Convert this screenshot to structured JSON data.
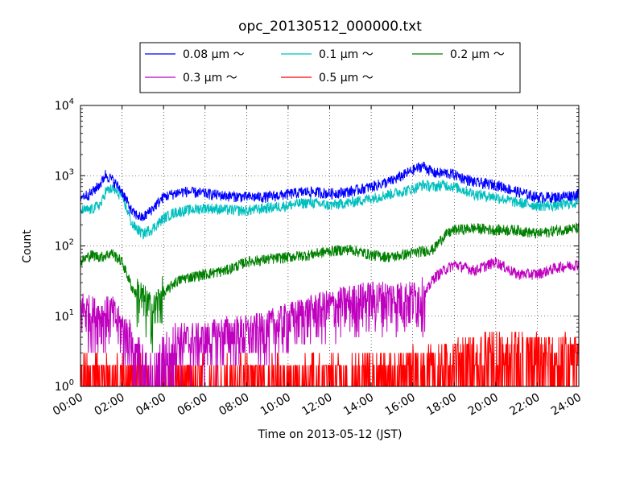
{
  "chart_data": {
    "type": "line",
    "title": "opc_20130512_000000.txt",
    "xlabel": "Time on 2013-05-12 (JST)",
    "ylabel": "Count",
    "x_unit": "hours",
    "xlim": [
      0,
      24
    ],
    "ylim": [
      1,
      10000
    ],
    "yscale": "log",
    "grid": true,
    "legend": {
      "placement": "top-center",
      "columns": 3
    },
    "xtick_labels": [
      "00:00",
      "02:00",
      "04:00",
      "06:00",
      "08:00",
      "10:00",
      "12:00",
      "14:00",
      "16:00",
      "18:00",
      "20:00",
      "22:00",
      "24:00"
    ],
    "ytick_labels": [
      {
        "base": "10",
        "exp": "0"
      },
      {
        "base": "10",
        "exp": "1"
      },
      {
        "base": "10",
        "exp": "2"
      },
      {
        "base": "10",
        "exp": "3"
      },
      {
        "base": "10",
        "exp": "4"
      }
    ],
    "series": [
      {
        "name": "0.08 μm ～",
        "color": "#0000ff",
        "x": [
          0,
          0.5,
          1,
          1.2,
          1.5,
          2,
          2.5,
          3,
          3.5,
          4,
          4.5,
          5,
          6,
          7,
          8,
          9,
          10,
          11,
          12,
          13,
          14,
          15,
          16,
          16.5,
          17,
          17.5,
          18,
          19,
          20,
          21,
          22,
          23,
          24
        ],
        "y": [
          500,
          560,
          800,
          1050,
          900,
          600,
          300,
          250,
          350,
          500,
          560,
          600,
          560,
          520,
          500,
          500,
          550,
          600,
          560,
          600,
          700,
          850,
          1200,
          1400,
          1100,
          1100,
          1050,
          800,
          750,
          600,
          500,
          500,
          550
        ]
      },
      {
        "name": "0.1 μm ～",
        "color": "#00bfbf",
        "x": [
          0,
          0.5,
          1,
          1.2,
          1.5,
          2,
          2.5,
          3,
          3.5,
          4,
          4.5,
          5,
          6,
          7,
          8,
          9,
          10,
          11,
          12,
          13,
          14,
          15,
          16,
          16.5,
          17,
          17.5,
          18,
          19,
          20,
          21,
          22,
          23,
          24
        ],
        "y": [
          320,
          330,
          400,
          600,
          650,
          520,
          200,
          150,
          180,
          250,
          300,
          320,
          350,
          330,
          320,
          350,
          380,
          420,
          380,
          420,
          480,
          560,
          650,
          750,
          700,
          750,
          700,
          550,
          500,
          420,
          380,
          380,
          420
        ]
      },
      {
        "name": "0.2 μm ～",
        "color": "#008000",
        "x": [
          0,
          0.5,
          1,
          1.5,
          2,
          2.5,
          3,
          3.5,
          4,
          4.5,
          5,
          6,
          7,
          8,
          9,
          10,
          11,
          12,
          13,
          14,
          15,
          16,
          16.5,
          17,
          17.5,
          18,
          19,
          20,
          21,
          22,
          23,
          24
        ],
        "y": [
          60,
          75,
          70,
          80,
          60,
          25,
          15,
          10,
          20,
          30,
          35,
          40,
          45,
          60,
          65,
          70,
          75,
          85,
          90,
          75,
          70,
          80,
          85,
          90,
          140,
          170,
          180,
          170,
          170,
          150,
          170,
          180
        ]
      },
      {
        "name": "0.3 μm ～",
        "color": "#bf00bf",
        "x": [
          0,
          0.5,
          1,
          1.5,
          2,
          2.5,
          3,
          3.5,
          4,
          4.5,
          5,
          6,
          7,
          8,
          9,
          10,
          11,
          12,
          13,
          14,
          15,
          16,
          16.5,
          17,
          17.5,
          18,
          19,
          20,
          21,
          22,
          23,
          24
        ],
        "y": [
          12,
          10,
          9,
          10,
          6,
          4,
          2,
          1.5,
          3,
          4,
          4,
          4,
          5,
          5,
          6,
          8,
          10,
          12,
          14,
          16,
          16,
          16,
          18,
          35,
          45,
          55,
          45,
          60,
          40,
          40,
          50,
          55
        ]
      },
      {
        "name": "0.5 μm ～",
        "color": "#ff0000",
        "x": [
          0,
          1,
          2,
          3,
          4,
          5,
          6,
          7,
          8,
          9,
          10,
          11,
          12,
          13,
          14,
          15,
          16,
          17,
          18,
          19,
          20,
          21,
          22,
          23,
          24
        ],
        "y": [
          1.5,
          1.5,
          1.4,
          1.3,
          1.2,
          1.2,
          1.3,
          1.3,
          1.3,
          1.3,
          1.3,
          1.4,
          1.4,
          1.5,
          1.6,
          1.6,
          1.8,
          2,
          2.5,
          2.8,
          3,
          3,
          2.8,
          2.8,
          3
        ]
      }
    ]
  }
}
